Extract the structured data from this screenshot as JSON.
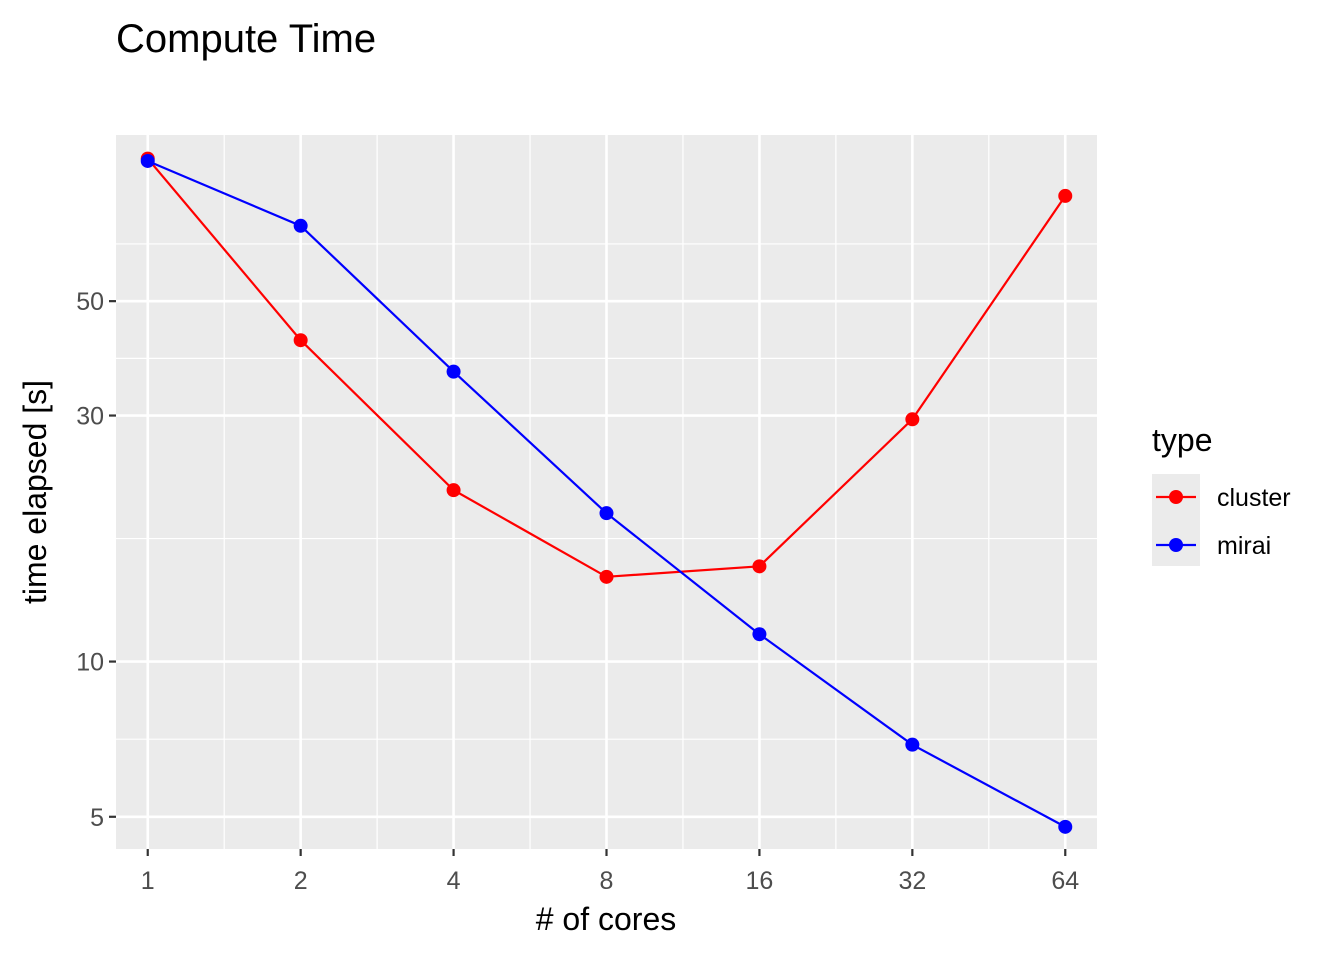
{
  "chart_data": {
    "type": "line",
    "title": "Compute Time",
    "xlabel": "# of cores",
    "ylabel": "time elapsed [s]",
    "x_scale": "log2",
    "y_scale": "log10",
    "x": [
      1,
      2,
      4,
      8,
      16,
      32,
      64
    ],
    "x_tick_labels": [
      "1",
      "2",
      "4",
      "8",
      "16",
      "32",
      "64"
    ],
    "y_ticks": [
      5,
      10,
      30,
      50
    ],
    "y_tick_labels": [
      "5",
      "10",
      "30",
      "50"
    ],
    "xlim": [
      0.866,
      73.9
    ],
    "ylim": [
      4.33,
      105
    ],
    "grid": true,
    "legend": {
      "title": "type",
      "position": "right"
    },
    "series": [
      {
        "name": "cluster",
        "color": "#ff0000",
        "values": [
          94.5,
          42.0,
          21.5,
          14.6,
          15.3,
          29.5,
          80.0
        ]
      },
      {
        "name": "mirai",
        "color": "#0000ff",
        "values": [
          93.5,
          70.0,
          36.5,
          19.4,
          11.3,
          6.9,
          4.78
        ]
      }
    ]
  }
}
